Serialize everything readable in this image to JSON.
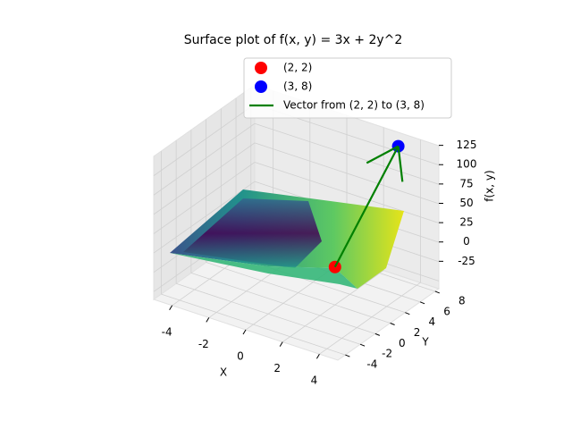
{
  "chart_data": {
    "type": "surface3d",
    "title": "Surface plot of f(x, y) = 3x + 2y^2",
    "xlabel": "X",
    "ylabel": "Y",
    "zlabel": "f(x, y)",
    "xlim": [
      -5,
      5
    ],
    "ylim": [
      -5,
      8.5
    ],
    "zlim": [
      -35,
      150
    ],
    "xticks": [
      -4,
      -2,
      0,
      2,
      4
    ],
    "yticks": [
      -4,
      -2,
      0,
      2,
      4,
      6,
      8
    ],
    "zticks": [
      -25,
      0,
      25,
      50,
      75,
      100,
      125
    ],
    "grid": true,
    "series": [
      {
        "name": "(2, 2)",
        "color": "#ff0000",
        "type": "point",
        "x": 2,
        "y": 2,
        "z": 14
      },
      {
        "name": "(3, 8)",
        "color": "#0000ff",
        "type": "point",
        "x": 3,
        "y": 8,
        "z": 137
      },
      {
        "name": "Vector from (2, 2) to (3, 8)",
        "color": "#008000",
        "type": "vector",
        "x": [
          2,
          3
        ],
        "y": [
          2,
          8
        ],
        "z": [
          14,
          137
        ]
      }
    ]
  }
}
